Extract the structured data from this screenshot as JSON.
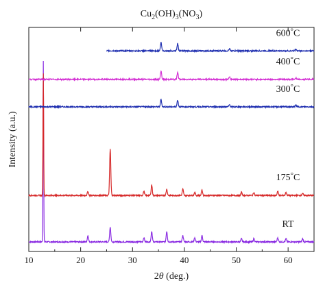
{
  "chart_data": {
    "type": "line",
    "title": "Cu2(OH)3(NO3)",
    "title_parts": {
      "base": "Cu",
      "sub1": "2",
      "mid": "(OH)",
      "sub2": "3",
      "mid2": "(NO",
      "sub3": "3",
      "end": ")"
    },
    "xlabel": "2θ (deg.)",
    "xlabel_parts": {
      "two": "2",
      "theta": "θ",
      "rest": " (deg.)"
    },
    "ylabel": "Intensity (a.u.)",
    "xlim": [
      10,
      65
    ],
    "xticks": [
      10,
      20,
      30,
      40,
      50,
      60
    ],
    "yticks_shown": false,
    "legend": "none",
    "grid": false,
    "series": [
      {
        "name": "RT",
        "color": "#8a2be2",
        "x_range": [
          10,
          65
        ],
        "baseline_rel": 0.0,
        "peaks": [
          {
            "x": 12.8,
            "h": 0.86
          },
          {
            "x": 21.4,
            "h": 0.03
          },
          {
            "x": 25.7,
            "h": 0.07
          },
          {
            "x": 32.2,
            "h": 0.02
          },
          {
            "x": 33.7,
            "h": 0.05
          },
          {
            "x": 36.6,
            "h": 0.05
          },
          {
            "x": 39.7,
            "h": 0.03
          },
          {
            "x": 42.0,
            "h": 0.02
          },
          {
            "x": 43.4,
            "h": 0.03
          },
          {
            "x": 51.0,
            "h": 0.015
          },
          {
            "x": 53.4,
            "h": 0.015
          },
          {
            "x": 58.0,
            "h": 0.02
          },
          {
            "x": 59.6,
            "h": 0.015
          },
          {
            "x": 62.8,
            "h": 0.015
          }
        ]
      },
      {
        "name": "175°C",
        "label_parts": {
          "num": "175",
          "deg": "°",
          "unit": "C"
        },
        "color": "#d62828",
        "x_range": [
          10,
          65
        ],
        "baseline_rel": 0.22,
        "peaks": [
          {
            "x": 12.8,
            "h": 0.58
          },
          {
            "x": 21.4,
            "h": 0.02
          },
          {
            "x": 25.7,
            "h": 0.22
          },
          {
            "x": 32.2,
            "h": 0.02
          },
          {
            "x": 33.7,
            "h": 0.05
          },
          {
            "x": 36.6,
            "h": 0.03
          },
          {
            "x": 39.7,
            "h": 0.03
          },
          {
            "x": 42.0,
            "h": 0.015
          },
          {
            "x": 43.4,
            "h": 0.025
          },
          {
            "x": 51.0,
            "h": 0.015
          },
          {
            "x": 53.4,
            "h": 0.015
          },
          {
            "x": 58.0,
            "h": 0.02
          },
          {
            "x": 59.6,
            "h": 0.015
          },
          {
            "x": 62.8,
            "h": 0.01
          }
        ]
      },
      {
        "name": "300°C",
        "label_parts": {
          "num": "300",
          "deg": "°",
          "unit": "C"
        },
        "color": "#1f2fb0",
        "x_range": [
          10,
          65
        ],
        "baseline_rel": 0.64,
        "peaks": [
          {
            "x": 35.5,
            "h": 0.035
          },
          {
            "x": 38.7,
            "h": 0.032
          },
          {
            "x": 48.7,
            "h": 0.01
          },
          {
            "x": 61.5,
            "h": 0.008
          }
        ]
      },
      {
        "name": "400°C",
        "label_parts": {
          "num": "400",
          "deg": "°",
          "unit": "C"
        },
        "color": "#d32fd3",
        "x_range": [
          10,
          65
        ],
        "baseline_rel": 0.77,
        "peaks": [
          {
            "x": 35.5,
            "h": 0.04
          },
          {
            "x": 38.7,
            "h": 0.035
          },
          {
            "x": 48.7,
            "h": 0.01
          },
          {
            "x": 61.5,
            "h": 0.008
          }
        ]
      },
      {
        "name": "600°C",
        "label_parts": {
          "num": "600",
          "deg": "°",
          "unit": "C"
        },
        "color": "#1f2fb0",
        "x_range": [
          25,
          65
        ],
        "baseline_rel": 0.905,
        "peaks": [
          {
            "x": 35.5,
            "h": 0.04
          },
          {
            "x": 38.7,
            "h": 0.035
          },
          {
            "x": 48.7,
            "h": 0.01
          },
          {
            "x": 61.5,
            "h": 0.008
          }
        ]
      }
    ]
  }
}
